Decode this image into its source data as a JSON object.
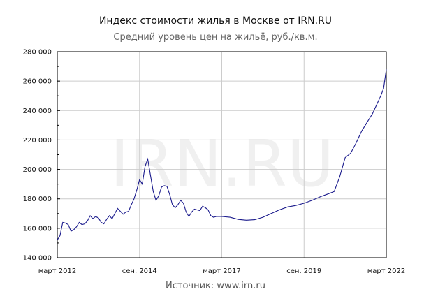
{
  "chart_data": {
    "type": "line",
    "title": "Индекс стоимости жилья в Москве от IRN.RU",
    "subtitle": "Средний уровень цен на жильё, руб./кв.м.",
    "xlabel": "",
    "ylabel": "",
    "ylim": [
      140000,
      280000
    ],
    "xlim": [
      "2012-03",
      "2022-03"
    ],
    "yticks": [
      "140 000",
      "160 000",
      "180 000",
      "200 000",
      "220 000",
      "240 000",
      "260 000",
      "280 000"
    ],
    "ytick_values": [
      140000,
      160000,
      180000,
      200000,
      220000,
      240000,
      260000,
      280000
    ],
    "xticks": [
      "март 2012",
      "сен. 2014",
      "март 2017",
      "сен. 2019",
      "март 2022"
    ],
    "xtick_values": [
      "2012-03",
      "2014-09",
      "2017-03",
      "2019-09",
      "2022-03"
    ],
    "grid": true,
    "line_color": "#1a1a8c",
    "watermark": "IRN.RU",
    "source_label": "Источник: www.irn.ru",
    "series": [
      {
        "x": [
          "2012-03",
          "2012-04",
          "2012-05",
          "2012-06",
          "2012-07",
          "2012-08",
          "2012-09",
          "2012-10",
          "2012-11",
          "2012-12",
          "2013-01",
          "2013-02",
          "2013-03",
          "2013-04",
          "2013-05",
          "2013-06",
          "2013-07",
          "2013-08",
          "2013-09",
          "2013-10",
          "2013-11",
          "2013-12",
          "2014-01",
          "2014-02",
          "2014-03",
          "2014-04",
          "2014-05",
          "2014-06",
          "2014-07",
          "2014-08",
          "2014-09",
          "2014-10",
          "2014-11",
          "2014-12",
          "2015-01",
          "2015-02",
          "2015-03",
          "2015-04",
          "2015-05",
          "2015-06",
          "2015-07",
          "2015-08",
          "2015-09",
          "2015-10",
          "2015-11",
          "2015-12",
          "2016-01",
          "2016-02",
          "2016-03",
          "2016-04",
          "2016-05",
          "2016-06",
          "2016-07",
          "2016-08",
          "2016-09",
          "2016-10",
          "2016-11",
          "2016-12",
          "2017-01",
          "2017-03",
          "2017-06",
          "2017-09",
          "2017-12",
          "2018-03",
          "2018-06",
          "2018-09",
          "2018-12",
          "2019-03",
          "2019-06",
          "2019-09",
          "2019-12",
          "2020-03",
          "2020-06",
          "2020-08",
          "2020-10",
          "2020-12",
          "2021-02",
          "2021-04",
          "2021-06",
          "2021-08",
          "2021-10",
          "2021-12",
          "2022-01",
          "2022-02",
          "2022-03"
        ],
        "values": [
          152000,
          155000,
          164000,
          163500,
          162500,
          158000,
          159000,
          161000,
          164000,
          162500,
          163000,
          165000,
          168500,
          166500,
          168000,
          167000,
          164000,
          163000,
          166000,
          168500,
          166500,
          170000,
          173500,
          171500,
          169500,
          171000,
          171500,
          176000,
          180000,
          186000,
          193000,
          190000,
          202000,
          207000,
          196000,
          185000,
          179000,
          182000,
          188000,
          189000,
          188500,
          183000,
          176000,
          174000,
          176000,
          179000,
          177000,
          171000,
          168000,
          171000,
          173000,
          172500,
          172000,
          175000,
          174000,
          172500,
          168500,
          167500,
          168000,
          168000,
          167500,
          166000,
          165500,
          165800,
          167500,
          170000,
          172500,
          174500,
          175500,
          177000,
          179000,
          181500,
          183500,
          185000,
          195000,
          208000,
          211000,
          218000,
          226000,
          232000,
          238000,
          246000,
          250000,
          255000,
          268000
        ]
      }
    ]
  }
}
